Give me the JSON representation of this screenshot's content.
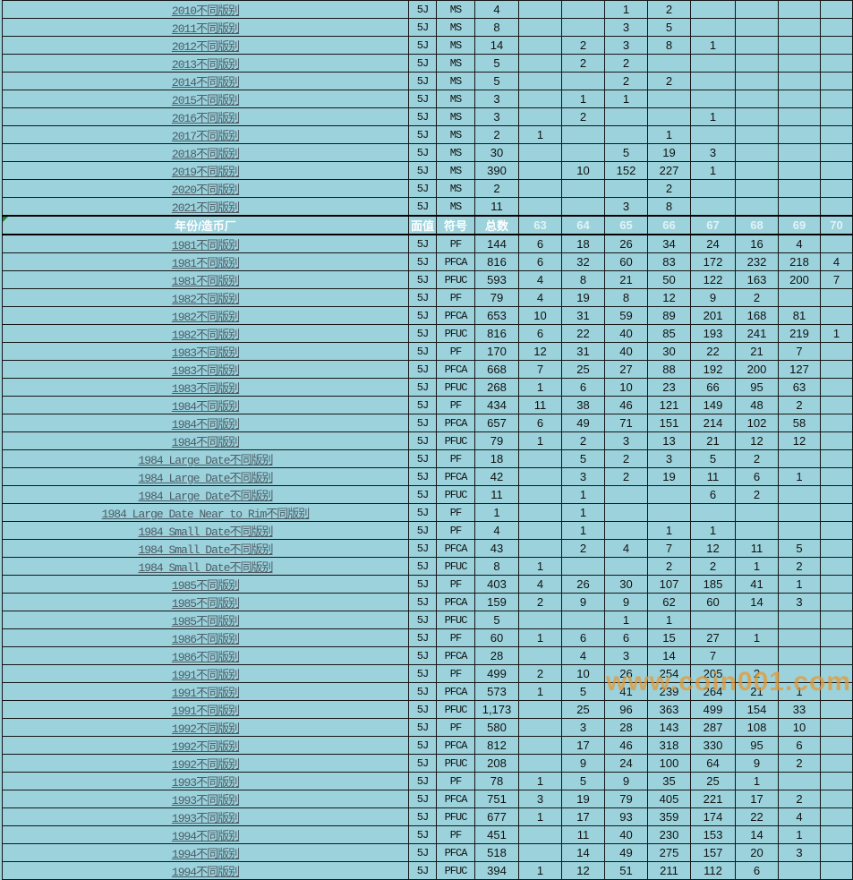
{
  "page": {
    "background_color": "#9bd2dc",
    "gridline_color": "#161616",
    "link_color": "#4d5d66",
    "header_text_color": "#ffffff",
    "error_indicator_color": "#1e8a2e"
  },
  "watermark": {
    "text": "www.coin001.com",
    "color": "#e69834"
  },
  "header": {
    "year_mint": "年份/造币厂",
    "denom": "面值",
    "symbol": "符号",
    "total": "总数",
    "grades": [
      "63",
      "64",
      "65",
      "66",
      "67",
      "68",
      "69",
      "70"
    ]
  },
  "top_rows": [
    {
      "label": "2010不同版别",
      "denom": "5J",
      "symbol": "MS",
      "total": "4",
      "grades": [
        "",
        "",
        "1",
        "2",
        "",
        "",
        "",
        ""
      ]
    },
    {
      "label": "2011不同版别",
      "denom": "5J",
      "symbol": "MS",
      "total": "8",
      "grades": [
        "",
        "",
        "3",
        "5",
        "",
        "",
        "",
        ""
      ]
    },
    {
      "label": "2012不同版别",
      "denom": "5J",
      "symbol": "MS",
      "total": "14",
      "grades": [
        "",
        "2",
        "3",
        "8",
        "1",
        "",
        "",
        ""
      ]
    },
    {
      "label": "2013不同版别",
      "denom": "5J",
      "symbol": "MS",
      "total": "5",
      "grades": [
        "",
        "2",
        "2",
        "",
        "",
        "",
        "",
        ""
      ]
    },
    {
      "label": "2014不同版别",
      "denom": "5J",
      "symbol": "MS",
      "total": "5",
      "grades": [
        "",
        "",
        "2",
        "2",
        "",
        "",
        "",
        ""
      ]
    },
    {
      "label": "2015不同版别",
      "denom": "5J",
      "symbol": "MS",
      "total": "3",
      "grades": [
        "",
        "1",
        "1",
        "",
        "",
        "",
        "",
        ""
      ]
    },
    {
      "label": "2016不同版别",
      "denom": "5J",
      "symbol": "MS",
      "total": "3",
      "grades": [
        "",
        "2",
        "",
        "",
        "1",
        "",
        "",
        ""
      ]
    },
    {
      "label": "2017不同版别",
      "denom": "5J",
      "symbol": "MS",
      "total": "2",
      "grades": [
        "1",
        "",
        "",
        "1",
        "",
        "",
        "",
        ""
      ]
    },
    {
      "label": "2018不同版别",
      "denom": "5J",
      "symbol": "MS",
      "total": "30",
      "grades": [
        "",
        "",
        "5",
        "19",
        "3",
        "",
        "",
        ""
      ]
    },
    {
      "label": "2019不同版别",
      "denom": "5J",
      "symbol": "MS",
      "total": "390",
      "grades": [
        "",
        "10",
        "152",
        "227",
        "1",
        "",
        "",
        ""
      ]
    },
    {
      "label": "2020不同版别",
      "denom": "5J",
      "symbol": "MS",
      "total": "2",
      "grades": [
        "",
        "",
        "",
        "2",
        "",
        "",
        "",
        ""
      ]
    },
    {
      "label": "2021不同版别",
      "denom": "5J",
      "symbol": "MS",
      "total": "11",
      "grades": [
        "",
        "",
        "3",
        "8",
        "",
        "",
        "",
        ""
      ]
    }
  ],
  "rows": [
    {
      "label": "1981不同版别",
      "denom": "5J",
      "symbol": "PF",
      "total": "144",
      "grades": [
        "6",
        "18",
        "26",
        "34",
        "24",
        "16",
        "4",
        ""
      ]
    },
    {
      "label": "1981不同版别",
      "denom": "5J",
      "symbol": "PFCA",
      "total": "816",
      "grades": [
        "6",
        "32",
        "60",
        "83",
        "172",
        "232",
        "218",
        "4"
      ]
    },
    {
      "label": "1981不同版别",
      "denom": "5J",
      "symbol": "PFUC",
      "total": "593",
      "grades": [
        "4",
        "8",
        "21",
        "50",
        "122",
        "163",
        "200",
        "7"
      ]
    },
    {
      "label": "1982不同版别",
      "denom": "5J",
      "symbol": "PF",
      "total": "79",
      "grades": [
        "4",
        "19",
        "8",
        "12",
        "9",
        "2",
        "",
        ""
      ]
    },
    {
      "label": "1982不同版别",
      "denom": "5J",
      "symbol": "PFCA",
      "total": "653",
      "grades": [
        "10",
        "31",
        "59",
        "89",
        "201",
        "168",
        "81",
        ""
      ]
    },
    {
      "label": "1982不同版别",
      "denom": "5J",
      "symbol": "PFUC",
      "total": "816",
      "grades": [
        "6",
        "22",
        "40",
        "85",
        "193",
        "241",
        "219",
        "1"
      ]
    },
    {
      "label": "1983不同版别",
      "denom": "5J",
      "symbol": "PF",
      "total": "170",
      "grades": [
        "12",
        "31",
        "40",
        "30",
        "22",
        "21",
        "7",
        ""
      ]
    },
    {
      "label": "1983不同版别",
      "denom": "5J",
      "symbol": "PFCA",
      "total": "668",
      "grades": [
        "7",
        "25",
        "27",
        "88",
        "192",
        "200",
        "127",
        ""
      ]
    },
    {
      "label": "1983不同版别",
      "denom": "5J",
      "symbol": "PFUC",
      "total": "268",
      "grades": [
        "1",
        "6",
        "10",
        "23",
        "66",
        "95",
        "63",
        ""
      ]
    },
    {
      "label": "1984不同版别",
      "denom": "5J",
      "symbol": "PF",
      "total": "434",
      "grades": [
        "11",
        "38",
        "46",
        "121",
        "149",
        "48",
        "2",
        ""
      ]
    },
    {
      "label": "1984不同版别",
      "denom": "5J",
      "symbol": "PFCA",
      "total": "657",
      "grades": [
        "6",
        "49",
        "71",
        "151",
        "214",
        "102",
        "58",
        ""
      ]
    },
    {
      "label": "1984不同版别",
      "denom": "5J",
      "symbol": "PFUC",
      "total": "79",
      "grades": [
        "1",
        "2",
        "3",
        "13",
        "21",
        "12",
        "12",
        ""
      ]
    },
    {
      "label": "1984 Large Date不同版别",
      "denom": "5J",
      "symbol": "PF",
      "total": "18",
      "grades": [
        "",
        "5",
        "2",
        "3",
        "5",
        "2",
        "",
        ""
      ]
    },
    {
      "label": "1984 Large Date不同版别",
      "denom": "5J",
      "symbol": "PFCA",
      "total": "42",
      "grades": [
        "",
        "3",
        "2",
        "19",
        "11",
        "6",
        "1",
        ""
      ]
    },
    {
      "label": "1984 Large Date不同版别",
      "denom": "5J",
      "symbol": "PFUC",
      "total": "11",
      "grades": [
        "",
        "1",
        "",
        "",
        "6",
        "2",
        "",
        ""
      ]
    },
    {
      "label": "1984 Large Date Near to Rim不同版别",
      "denom": "5J",
      "symbol": "PF",
      "total": "1",
      "grades": [
        "",
        "1",
        "",
        "",
        "",
        "",
        "",
        ""
      ]
    },
    {
      "label": "1984 Small Date不同版别",
      "denom": "5J",
      "symbol": "PF",
      "total": "4",
      "grades": [
        "",
        "1",
        "",
        "1",
        "1",
        "",
        "",
        ""
      ]
    },
    {
      "label": "1984 Small Date不同版别",
      "denom": "5J",
      "symbol": "PFCA",
      "total": "43",
      "grades": [
        "",
        "2",
        "4",
        "7",
        "12",
        "11",
        "5",
        ""
      ]
    },
    {
      "label": "1984 Small Date不同版别",
      "denom": "5J",
      "symbol": "PFUC",
      "total": "8",
      "grades": [
        "1",
        "",
        "",
        "2",
        "2",
        "1",
        "2",
        ""
      ]
    },
    {
      "label": "1985不同版别",
      "denom": "5J",
      "symbol": "PF",
      "total": "403",
      "grades": [
        "4",
        "26",
        "30",
        "107",
        "185",
        "41",
        "1",
        ""
      ]
    },
    {
      "label": "1985不同版别",
      "denom": "5J",
      "symbol": "PFCA",
      "total": "159",
      "grades": [
        "2",
        "9",
        "9",
        "62",
        "60",
        "14",
        "3",
        ""
      ]
    },
    {
      "label": "1985不同版别",
      "denom": "5J",
      "symbol": "PFUC",
      "total": "5",
      "grades": [
        "",
        "",
        "1",
        "1",
        "",
        "",
        "",
        ""
      ]
    },
    {
      "label": "1986不同版别",
      "denom": "5J",
      "symbol": "PF",
      "total": "60",
      "grades": [
        "1",
        "6",
        "6",
        "15",
        "27",
        "1",
        "",
        ""
      ]
    },
    {
      "label": "1986不同版别",
      "denom": "5J",
      "symbol": "PFCA",
      "total": "28",
      "grades": [
        "",
        "4",
        "3",
        "14",
        "7",
        "",
        "",
        ""
      ]
    },
    {
      "label": "1991不同版别",
      "denom": "5J",
      "symbol": "PF",
      "total": "499",
      "grades": [
        "2",
        "10",
        "26",
        "254",
        "205",
        "2",
        "",
        ""
      ]
    },
    {
      "label": "1991不同版别",
      "denom": "5J",
      "symbol": "PFCA",
      "total": "573",
      "grades": [
        "1",
        "5",
        "41",
        "239",
        "264",
        "21",
        "1",
        ""
      ]
    },
    {
      "label": "1991不同版别",
      "denom": "5J",
      "symbol": "PFUC",
      "total": "1,173",
      "grades": [
        "",
        "25",
        "96",
        "363",
        "499",
        "154",
        "33",
        ""
      ]
    },
    {
      "label": "1992不同版别",
      "denom": "5J",
      "symbol": "PF",
      "total": "580",
      "grades": [
        "",
        "3",
        "28",
        "143",
        "287",
        "108",
        "10",
        ""
      ]
    },
    {
      "label": "1992不同版别",
      "denom": "5J",
      "symbol": "PFCA",
      "total": "812",
      "grades": [
        "",
        "17",
        "46",
        "318",
        "330",
        "95",
        "6",
        ""
      ]
    },
    {
      "label": "1992不同版别",
      "denom": "5J",
      "symbol": "PFUC",
      "total": "208",
      "grades": [
        "",
        "9",
        "24",
        "100",
        "64",
        "9",
        "2",
        ""
      ]
    },
    {
      "label": "1993不同版别",
      "denom": "5J",
      "symbol": "PF",
      "total": "78",
      "grades": [
        "1",
        "5",
        "9",
        "35",
        "25",
        "1",
        "",
        ""
      ]
    },
    {
      "label": "1993不同版别",
      "denom": "5J",
      "symbol": "PFCA",
      "total": "751",
      "grades": [
        "3",
        "19",
        "79",
        "405",
        "221",
        "17",
        "2",
        ""
      ]
    },
    {
      "label": "1993不同版别",
      "denom": "5J",
      "symbol": "PFUC",
      "total": "677",
      "grades": [
        "1",
        "17",
        "93",
        "359",
        "174",
        "22",
        "4",
        ""
      ]
    },
    {
      "label": "1994不同版别",
      "denom": "5J",
      "symbol": "PF",
      "total": "451",
      "grades": [
        "",
        "11",
        "40",
        "230",
        "153",
        "14",
        "1",
        ""
      ]
    },
    {
      "label": "1994不同版别",
      "denom": "5J",
      "symbol": "PFCA",
      "total": "518",
      "grades": [
        "",
        "14",
        "49",
        "275",
        "157",
        "20",
        "3",
        ""
      ]
    },
    {
      "label": "1994不同版别",
      "denom": "5J",
      "symbol": "PFUC",
      "total": "394",
      "grades": [
        "1",
        "12",
        "51",
        "211",
        "112",
        "6",
        "",
        ""
      ]
    }
  ]
}
